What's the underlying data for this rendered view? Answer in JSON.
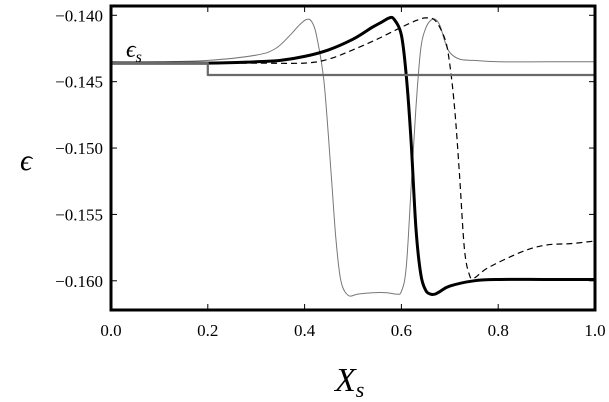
{
  "chart_data": {
    "type": "line",
    "xlabel": "X",
    "xlabel_sub": "s",
    "ylabel": "ϵ",
    "annotation": {
      "text": "ϵ",
      "sub": "s"
    },
    "xlim": [
      0.0,
      1.0
    ],
    "ylim": [
      -0.1622,
      -0.1393
    ],
    "x_ticks": [
      0.0,
      0.2,
      0.4,
      0.6,
      0.8,
      1.0
    ],
    "x_tick_labels": [
      "0.0",
      "0.2",
      "0.4",
      "0.6",
      "0.8",
      "1.0"
    ],
    "y_ticks": [
      -0.14,
      -0.145,
      -0.15,
      -0.155,
      -0.16
    ],
    "y_tick_labels": [
      "−0.140",
      "−0.145",
      "−0.150",
      "−0.155",
      "−0.160"
    ],
    "grid": false,
    "series": [
      {
        "style": "thin",
        "color": "#777777",
        "x": [
          0.0,
          0.1,
          0.2,
          0.3,
          0.34,
          0.37,
          0.39,
          0.405,
          0.415,
          0.425,
          0.44,
          0.455,
          0.465,
          0.475,
          0.49,
          0.51,
          0.54,
          0.57,
          0.59,
          0.6,
          0.61,
          0.62,
          0.63,
          0.64,
          0.65,
          0.66,
          0.67,
          0.68,
          0.69,
          0.7,
          0.72,
          0.75,
          0.8,
          0.9,
          1.0
        ],
        "y": [
          -0.1435,
          -0.1435,
          -0.1434,
          -0.143,
          -0.1425,
          -0.1415,
          -0.1407,
          -0.1403,
          -0.1405,
          -0.1416,
          -0.145,
          -0.152,
          -0.157,
          -0.16,
          -0.1611,
          -0.161,
          -0.1609,
          -0.1609,
          -0.161,
          -0.1608,
          -0.159,
          -0.153,
          -0.147,
          -0.1425,
          -0.141,
          -0.1404,
          -0.1403,
          -0.1408,
          -0.142,
          -0.1428,
          -0.1433,
          -0.1434,
          -0.1435,
          -0.1435,
          -0.1435
        ]
      },
      {
        "style": "dashed",
        "color": "#000000",
        "x": [
          0.0,
          0.2,
          0.3,
          0.4,
          0.45,
          0.5,
          0.55,
          0.6,
          0.63,
          0.65,
          0.67,
          0.69,
          0.7,
          0.71,
          0.72,
          0.73,
          0.74,
          0.75,
          0.78,
          0.85,
          0.9,
          0.95,
          1.0
        ],
        "y": [
          -0.1436,
          -0.1436,
          -0.1436,
          -0.1436,
          -0.1433,
          -0.1426,
          -0.1418,
          -0.1409,
          -0.1404,
          -0.1402,
          -0.1404,
          -0.1418,
          -0.1437,
          -0.147,
          -0.152,
          -0.1575,
          -0.1595,
          -0.1598,
          -0.159,
          -0.1578,
          -0.1573,
          -0.1572,
          -0.157
        ]
      },
      {
        "style": "thick",
        "color": "#000000",
        "x": [
          0.0,
          0.2,
          0.3,
          0.35,
          0.4,
          0.45,
          0.5,
          0.54,
          0.56,
          0.575,
          0.585,
          0.6,
          0.61,
          0.62,
          0.63,
          0.64,
          0.65,
          0.66,
          0.67,
          0.68,
          0.7,
          0.75,
          0.8,
          0.9,
          1.0
        ],
        "y": [
          -0.1436,
          -0.1436,
          -0.1435,
          -0.1434,
          -0.1431,
          -0.1426,
          -0.1418,
          -0.1409,
          -0.1405,
          -0.1402,
          -0.1403,
          -0.1415,
          -0.1445,
          -0.1495,
          -0.156,
          -0.1595,
          -0.1607,
          -0.161,
          -0.161,
          -0.1608,
          -0.1604,
          -0.16,
          -0.1599,
          -0.1599,
          -0.1599
        ]
      },
      {
        "style": "step",
        "color": "#6a6a6a",
        "x": [
          0.0,
          0.2,
          0.2,
          1.0
        ],
        "y": [
          -0.1436,
          -0.1436,
          -0.1445,
          -0.1445
        ]
      }
    ]
  }
}
